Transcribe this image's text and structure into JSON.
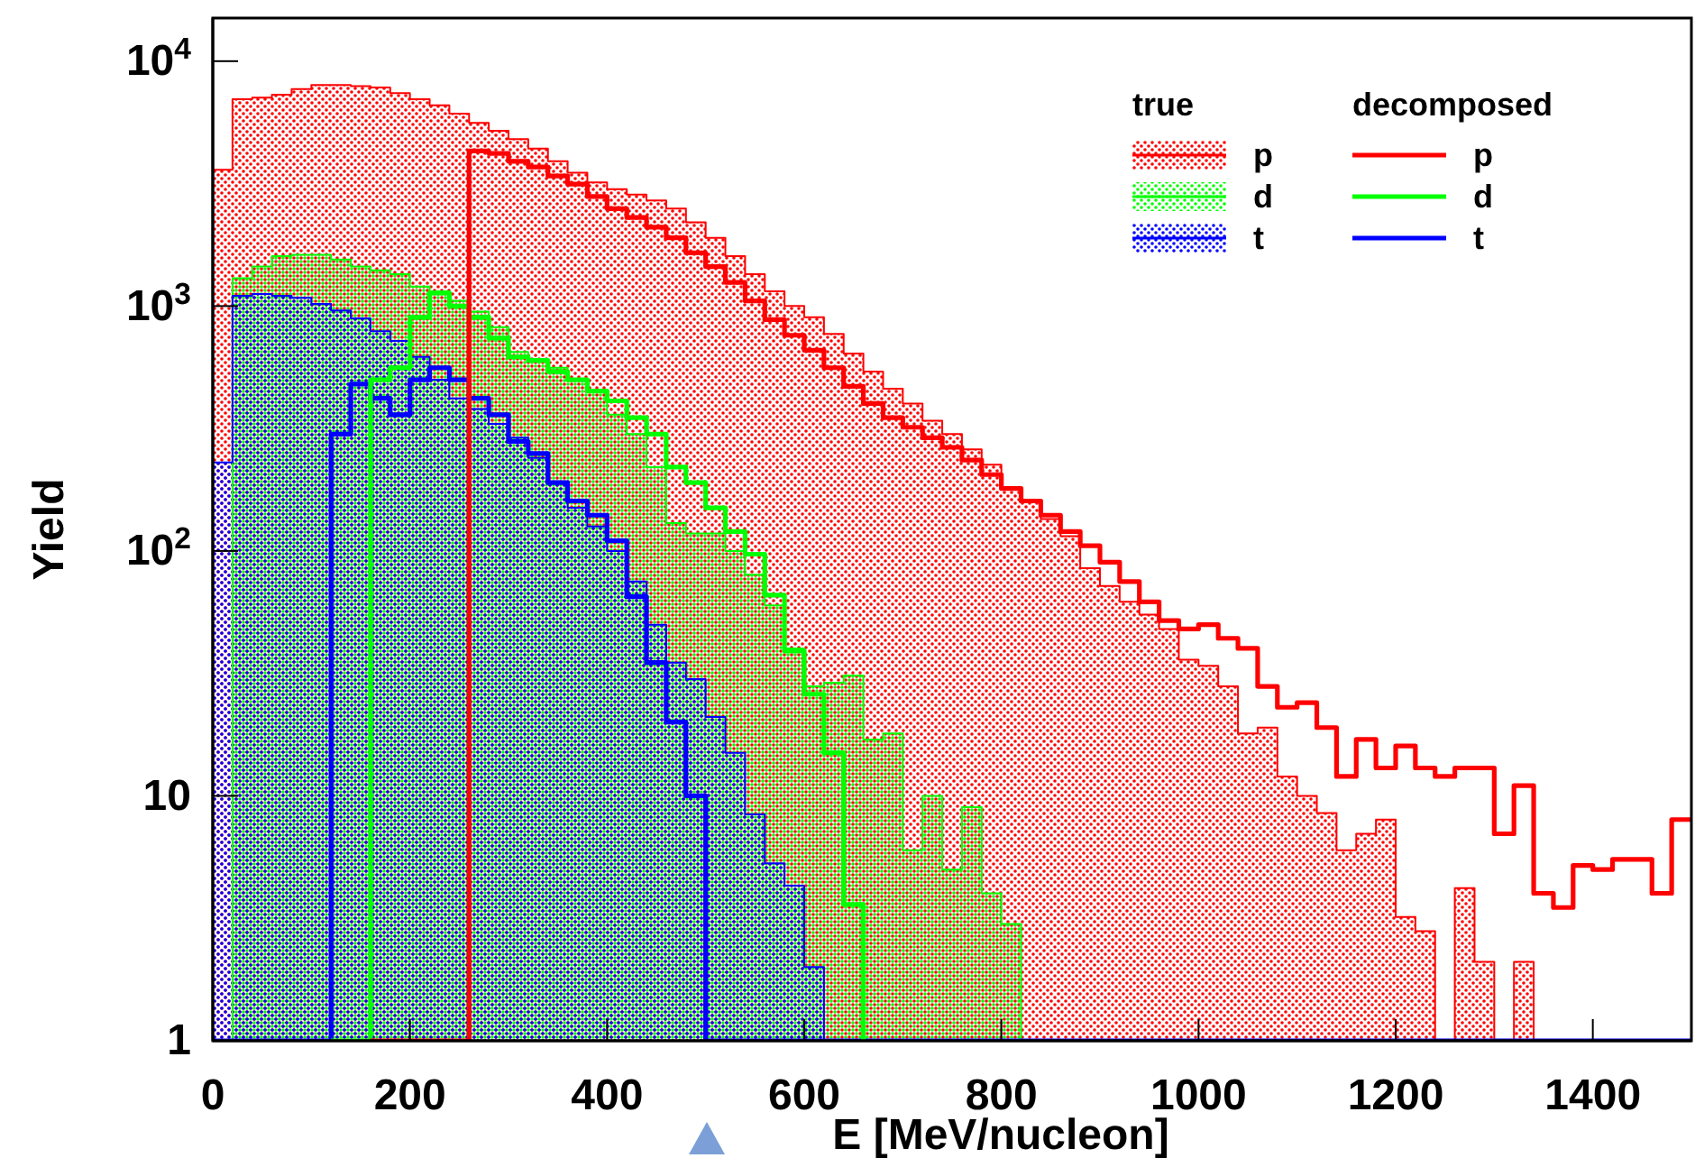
{
  "chart_data": {
    "type": "histogram",
    "xlabel": "E [MeV/nucleon]",
    "ylabel": "Yield",
    "annotations": [
      "true",
      "decomposed"
    ],
    "bins": [
      0,
      20,
      40,
      60,
      80,
      100,
      120,
      140,
      160,
      180,
      200,
      220,
      240,
      260,
      280,
      300,
      320,
      340,
      360,
      380,
      400,
      420,
      440,
      460,
      480,
      500,
      520,
      540,
      560,
      580,
      600,
      620,
      640,
      660,
      680,
      700,
      720,
      740,
      760,
      780,
      800,
      820,
      840,
      860,
      880,
      900,
      920,
      940,
      960,
      980,
      1000,
      1020,
      1040,
      1060,
      1080,
      1100,
      1120,
      1140,
      1160,
      1180,
      1200,
      1220,
      1240,
      1260,
      1280,
      1300,
      1320,
      1340,
      1360,
      1380,
      1400,
      1420,
      1440,
      1460,
      1480,
      1500
    ],
    "series": [
      {
        "name": "p",
        "type": "histogram",
        "color": "#ff0000",
        "values": [
          3600,
          7000,
          7100,
          7300,
          7700,
          8000,
          8000,
          7900,
          7800,
          7400,
          7000,
          6600,
          6100,
          5600,
          5200,
          4800,
          4400,
          3900,
          3500,
          3200,
          3000,
          2850,
          2700,
          2500,
          2200,
          1900,
          1600,
          1350,
          1150,
          1000,
          900,
          770,
          640,
          540,
          460,
          400,
          340,
          300,
          260,
          225,
          180,
          160,
          135,
          115,
          85,
          72,
          62,
          55,
          48,
          36,
          34,
          28,
          18,
          19,
          12,
          10,
          8.5,
          6,
          7,
          8,
          3.2,
          2.8,
          null,
          4.2,
          2.1,
          null,
          2.1,
          null,
          null,
          null,
          null,
          null,
          null,
          null,
          null
        ]
      },
      {
        "name": "d",
        "type": "histogram",
        "color": "#00ff00",
        "values": [
          null,
          1300,
          1450,
          1600,
          1620,
          1620,
          1550,
          1450,
          1400,
          1350,
          1200,
          1150,
          1050,
          950,
          820,
          650,
          600,
          560,
          500,
          450,
          360,
          300,
          220,
          130,
          118,
          118,
          100,
          80,
          60,
          40,
          28,
          29,
          31,
          17,
          18,
          6,
          10,
          5,
          9,
          4,
          3,
          null,
          null,
          null,
          null,
          null,
          null,
          null,
          null,
          null,
          null,
          null,
          null,
          null,
          null,
          null,
          null,
          null,
          null,
          null,
          null,
          null,
          null,
          null,
          null,
          null,
          null,
          null,
          null,
          null,
          null,
          null,
          null,
          null,
          null
        ]
      },
      {
        "name": "t",
        "type": "histogram",
        "color": "#0000ff",
        "values": [
          230,
          1100,
          1120,
          1100,
          1080,
          1020,
          960,
          890,
          790,
          720,
          620,
          500,
          420,
          380,
          330,
          290,
          240,
          190,
          150,
          126,
          100,
          75,
          50,
          35,
          30,
          21,
          15,
          8.4,
          5.3,
          4.3,
          2,
          null,
          null,
          null,
          null,
          null,
          null,
          null,
          null,
          null,
          null,
          null,
          null,
          null,
          null,
          null,
          null,
          null,
          null,
          null,
          null,
          null,
          null,
          null,
          null,
          null,
          null,
          null,
          null,
          null,
          null,
          null,
          null,
          null,
          null,
          null,
          null,
          null,
          null,
          null,
          null,
          null,
          null,
          null,
          null
        ]
      },
      {
        "name": "p",
        "type": "step",
        "color": "#ff0000",
        "x": [
          160,
          260,
          280,
          300,
          320,
          340,
          360,
          380,
          400,
          420,
          440,
          460,
          480,
          500,
          520,
          540,
          560,
          580,
          600,
          620,
          640,
          660,
          680,
          700,
          720,
          740,
          760,
          780,
          800,
          820,
          840,
          860,
          880,
          900,
          920,
          940,
          960,
          980,
          1000,
          1020,
          1040,
          1060,
          1080,
          1100,
          1120,
          1140,
          1160,
          1180,
          1200,
          1220,
          1240,
          1260,
          1280,
          1300,
          1320,
          1340,
          1360,
          1380,
          1400,
          1420,
          1440,
          1460,
          1480,
          1500
        ],
        "values": [
          1,
          4300,
          4200,
          3900,
          3700,
          3400,
          3150,
          2800,
          2500,
          2300,
          2100,
          1900,
          1650,
          1450,
          1250,
          1050,
          880,
          760,
          660,
          560,
          470,
          400,
          350,
          320,
          290,
          265,
          235,
          205,
          180,
          160,
          140,
          120,
          105,
          90,
          75,
          62,
          52,
          48,
          50,
          44,
          40,
          28,
          23,
          24,
          19,
          12,
          17,
          13,
          16,
          13,
          12,
          13,
          13,
          7,
          11,
          4,
          3.5,
          5.2,
          5,
          5.5,
          5.5,
          4,
          8,
          8
        ]
      },
      {
        "name": "d",
        "type": "step",
        "color": "#00ff00",
        "x": [
          120,
          160,
          180,
          200,
          220,
          240,
          260,
          280,
          300,
          320,
          340,
          360,
          380,
          400,
          420,
          440,
          460,
          480,
          500,
          520,
          540,
          560,
          580,
          600,
          620,
          640,
          660
        ],
        "values": [
          1,
          500,
          560,
          900,
          1130,
          1000,
          900,
          740,
          620,
          600,
          540,
          500,
          450,
          410,
          350,
          300,
          220,
          190,
          150,
          120,
          97,
          66,
          39,
          26,
          15,
          3.6,
          1
        ]
      },
      {
        "name": "t",
        "type": "step",
        "color": "#0000ff",
        "x": [
          0,
          120,
          140,
          160,
          180,
          200,
          220,
          240,
          260,
          280,
          300,
          320,
          340,
          360,
          380,
          400,
          420,
          440,
          460,
          480,
          500,
          1500
        ],
        "values": [
          1,
          300,
          480,
          420,
          360,
          500,
          560,
          500,
          420,
          360,
          280,
          250,
          190,
          160,
          140,
          110,
          65,
          35,
          20,
          10,
          1,
          1
        ]
      }
    ],
    "xlim": [
      0,
      1500
    ],
    "xticks": [
      0,
      200,
      400,
      600,
      800,
      1000,
      1200,
      1400
    ],
    "ylim": [
      1,
      15000
    ],
    "yticks": [
      1,
      10,
      {
        "value": 100,
        "label": "10$^{2}$"
      },
      {
        "value": 1000,
        "label": "10$^{3}$"
      },
      {
        "value": 10000,
        "label": "10$^{4}$"
      }
    ],
    "log": true,
    "grid": false,
    "legend": "top right"
  }
}
